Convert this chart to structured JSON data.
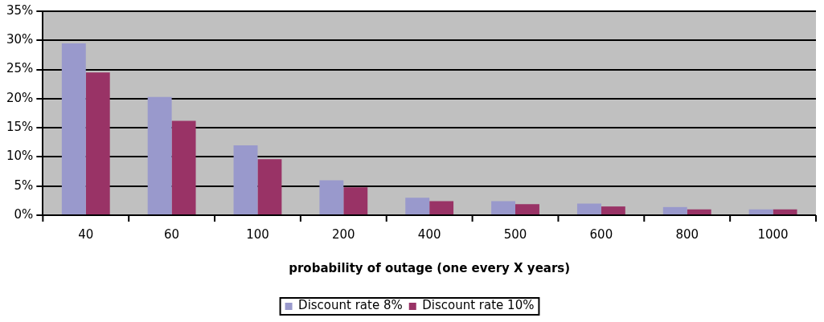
{
  "chart_data": {
    "type": "bar",
    "xlabel": "probability of outage (one every X years)",
    "categories": [
      "40",
      "60",
      "100",
      "200",
      "400",
      "500",
      "600",
      "800",
      "1000"
    ],
    "series": [
      {
        "name": "Discount rate 8%",
        "color": "#9999cc",
        "values": [
          29.5,
          20.3,
          12,
          6,
          3,
          2.4,
          2,
          1.4,
          1
        ]
      },
      {
        "name": "Discount rate 10%",
        "color": "#993366",
        "values": [
          24.5,
          16.2,
          9.6,
          4.8,
          2.4,
          1.9,
          1.5,
          1,
          1
        ]
      }
    ],
    "ylim": [
      0,
      35
    ],
    "yticks": [
      {
        "value": 0,
        "label": "0%"
      },
      {
        "value": 5,
        "label": "5%"
      },
      {
        "value": 10,
        "label": "10%"
      },
      {
        "value": 15,
        "label": "15%"
      },
      {
        "value": 20,
        "label": "20%"
      },
      {
        "value": 25,
        "label": "25%"
      },
      {
        "value": 30,
        "label": "30%"
      },
      {
        "value": 35,
        "label": "35%"
      }
    ],
    "grid": "y",
    "legend": "bottom"
  }
}
